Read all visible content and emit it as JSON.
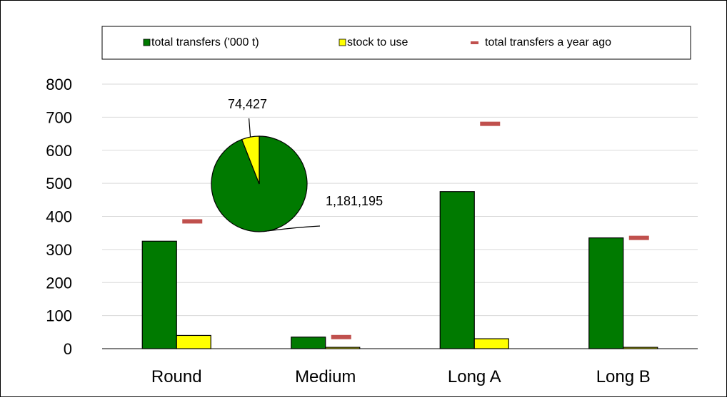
{
  "chart_data": {
    "type": "bar",
    "categories": [
      "Round",
      "Medium",
      "Long A",
      "Long B"
    ],
    "series": [
      {
        "name": "total transfers ('000 t)",
        "kind": "bar",
        "color": "#007A00",
        "values": [
          325,
          35,
          475,
          335
        ]
      },
      {
        "name": "stock to use",
        "kind": "bar",
        "color": "#FFFF00",
        "values": [
          40,
          4,
          30,
          4
        ]
      },
      {
        "name": "total transfers a year ago",
        "kind": "marker",
        "color": "#C0504D",
        "values": [
          385,
          35,
          680,
          335
        ]
      }
    ],
    "yticks": [
      "0",
      "100",
      "200",
      "300",
      "400",
      "500",
      "600",
      "700",
      "800"
    ],
    "ylim": [
      0,
      800
    ],
    "grid": true,
    "legend": "top",
    "inset_pie": {
      "slices": [
        {
          "label": "1,181,195",
          "value": 1181195,
          "color": "#007A00"
        },
        {
          "label": "74,427",
          "value": 74427,
          "color": "#FFFF00"
        }
      ]
    }
  }
}
